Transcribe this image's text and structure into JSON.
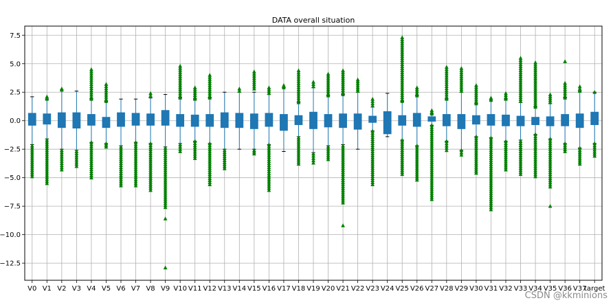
{
  "chart_data": {
    "type": "box",
    "title": "DATA overall situation",
    "xlabel": "",
    "ylabel": "",
    "ylim": [
      -14,
      8.3
    ],
    "yticks": [
      7.5,
      5.0,
      2.5,
      0.0,
      -2.5,
      -5.0,
      -7.5,
      -10.0,
      -12.5
    ],
    "ytick_labels": [
      "7.5",
      "5.0",
      "2.5",
      "0.0",
      "−2.5",
      "−5.0",
      "−7.5",
      "−10.0",
      "−12.5"
    ],
    "grid": true,
    "box_color": "#1f77b4",
    "whisker_color": "#1f77b4",
    "flier_color": "#008000",
    "flier_marker": "triangle",
    "categories": [
      "V0",
      "V1",
      "V2",
      "V3",
      "V4",
      "V5",
      "V6",
      "V7",
      "V8",
      "V9",
      "V10",
      "V11",
      "V12",
      "V13",
      "V14",
      "V15",
      "V16",
      "V17",
      "V18",
      "V19",
      "V20",
      "V21",
      "V22",
      "V23",
      "V24",
      "V25",
      "V26",
      "V27",
      "V28",
      "V29",
      "V30",
      "V31",
      "V32",
      "V33",
      "V34",
      "V35",
      "V36",
      "V37",
      "target"
    ],
    "boxes": [
      {
        "q1": -0.4,
        "q3": 0.65,
        "wlo": -2.1,
        "whi": 2.1,
        "outliers_high": [],
        "outliers_low": [
          -2.2,
          -4.9
        ]
      },
      {
        "q1": -0.3,
        "q3": 0.6,
        "wlo": -1.6,
        "whi": 1.9,
        "outliers_high": [
          1.9,
          2.1
        ],
        "outliers_low": [
          -1.7,
          -5.5
        ]
      },
      {
        "q1": -0.6,
        "q3": 0.7,
        "wlo": -2.5,
        "whi": 2.7,
        "outliers_high": [
          2.7,
          2.8
        ],
        "outliers_low": [
          -2.6,
          -4.3
        ]
      },
      {
        "q1": -0.65,
        "q3": 0.7,
        "wlo": -2.6,
        "whi": 2.6,
        "outliers_high": [],
        "outliers_low": [
          -2.7,
          -4.0
        ]
      },
      {
        "q1": -0.4,
        "q3": 0.55,
        "wlo": -1.9,
        "whi": 1.9,
        "outliers_high": [
          1.9,
          4.5
        ],
        "outliers_low": [
          -1.9,
          -5.0
        ]
      },
      {
        "q1": -0.6,
        "q3": 0.3,
        "wlo": -2.0,
        "whi": 1.7,
        "outliers_high": [
          1.7,
          3.2
        ],
        "outliers_low": [
          -2.0,
          -2.3
        ]
      },
      {
        "q1": -0.5,
        "q3": 0.7,
        "wlo": -2.2,
        "whi": 1.9,
        "outliers_high": [],
        "outliers_low": [
          -2.3,
          -5.7
        ]
      },
      {
        "q1": -0.4,
        "q3": 0.65,
        "wlo": -1.9,
        "whi": 1.9,
        "outliers_high": [],
        "outliers_low": [
          -1.9,
          -5.7
        ]
      },
      {
        "q1": -0.4,
        "q3": 0.6,
        "wlo": -2.0,
        "whi": 2.0,
        "outliers_high": [
          2.2,
          2.4
        ],
        "outliers_low": [
          -2.0,
          -6.1
        ]
      },
      {
        "q1": -0.4,
        "q3": 0.9,
        "wlo": -2.3,
        "whi": 2.3,
        "outliers_high": [],
        "outliers_low": [
          -2.4,
          -7.6,
          -8.6,
          -12.9
        ]
      },
      {
        "q1": -0.5,
        "q3": 0.55,
        "wlo": -2.0,
        "whi": 2.0,
        "outliers_high": [
          2.0,
          4.8
        ],
        "outliers_low": [
          -2.1,
          -2.7
        ]
      },
      {
        "q1": -0.5,
        "q3": 0.5,
        "wlo": -1.8,
        "whi": 1.9,
        "outliers_high": [
          1.9,
          2.9
        ],
        "outliers_low": [
          -1.8,
          -3.3
        ]
      },
      {
        "q1": -0.5,
        "q3": 0.55,
        "wlo": -2.0,
        "whi": 2.0,
        "outliers_high": [
          2.0,
          4.0
        ],
        "outliers_low": [
          -2.0,
          -5.6
        ]
      },
      {
        "q1": -0.6,
        "q3": 0.7,
        "wlo": -2.5,
        "whi": 2.5,
        "outliers_high": [],
        "outliers_low": [
          -2.6,
          -4.2
        ]
      },
      {
        "q1": -0.6,
        "q3": 0.65,
        "wlo": -2.5,
        "whi": 2.5,
        "outliers_high": [
          2.6,
          2.8
        ],
        "outliers_low": []
      },
      {
        "q1": -0.7,
        "q3": 0.6,
        "wlo": -2.5,
        "whi": 2.5,
        "outliers_high": [
          2.8,
          4.3
        ],
        "outliers_low": [
          -2.6,
          -2.9
        ]
      },
      {
        "q1": -0.5,
        "q3": 0.65,
        "wlo": -2.1,
        "whi": 2.3,
        "outliers_high": [
          2.4,
          2.9
        ],
        "outliers_low": [
          -2.1,
          -6.1
        ]
      },
      {
        "q1": -0.85,
        "q3": 0.55,
        "wlo": -2.7,
        "whi": 2.9,
        "outliers_high": [
          2.9,
          3.1
        ],
        "outliers_low": []
      },
      {
        "q1": -0.35,
        "q3": 0.45,
        "wlo": -1.4,
        "whi": 1.6,
        "outliers_high": [
          1.6,
          4.4
        ],
        "outliers_low": [
          -1.5,
          -3.8
        ]
      },
      {
        "q1": -0.7,
        "q3": 0.75,
        "wlo": -2.8,
        "whi": 2.9,
        "outliers_high": [
          3.0,
          3.4
        ],
        "outliers_low": [
          -2.9,
          -3.7
        ]
      },
      {
        "q1": -0.55,
        "q3": 0.55,
        "wlo": -2.2,
        "whi": 2.2,
        "outliers_high": [
          2.2,
          4.1
        ],
        "outliers_low": [
          -2.3,
          -3.4
        ]
      },
      {
        "q1": -0.6,
        "q3": 0.6,
        "wlo": -2.1,
        "whi": 2.3,
        "outliers_high": [
          2.3,
          4.4
        ],
        "outliers_low": [
          -2.2,
          -7.2,
          -9.2
        ]
      },
      {
        "q1": -0.75,
        "q3": 0.6,
        "wlo": -2.5,
        "whi": 2.5,
        "outliers_high": [
          2.6,
          3.6
        ],
        "outliers_low": []
      },
      {
        "q1": -0.15,
        "q3": 0.4,
        "wlo": -0.9,
        "whi": 1.2,
        "outliers_high": [
          1.3,
          1.9
        ],
        "outliers_low": [
          -0.9,
          -5.6
        ]
      },
      {
        "q1": -1.15,
        "q3": 0.8,
        "wlo": -1.4,
        "whi": 2.4,
        "outliers_high": [],
        "outliers_low": []
      },
      {
        "q1": -0.4,
        "q3": 0.45,
        "wlo": -1.7,
        "whi": 1.7,
        "outliers_high": [
          1.7,
          7.3
        ],
        "outliers_low": [
          -1.7,
          -4.7
        ]
      },
      {
        "q1": -0.5,
        "q3": 0.65,
        "wlo": -2.2,
        "whi": 2.2,
        "outliers_high": [
          2.2,
          2.9
        ],
        "outliers_low": [
          -2.2,
          -5.2
        ]
      },
      {
        "q1": -0.05,
        "q3": 0.35,
        "wlo": -0.4,
        "whi": 0.6,
        "outliers_high": [
          0.6,
          0.9
        ],
        "outliers_low": [
          -0.4,
          -6.9
        ]
      },
      {
        "q1": -0.45,
        "q3": 0.55,
        "wlo": -1.8,
        "whi": 1.9,
        "outliers_high": [
          1.9,
          4.7
        ],
        "outliers_low": [
          -1.8,
          -2.6
        ]
      },
      {
        "q1": -0.7,
        "q3": 0.55,
        "wlo": -2.6,
        "whi": 2.5,
        "outliers_high": [
          2.6,
          4.6
        ],
        "outliers_low": [
          -2.6,
          -3.0
        ]
      },
      {
        "q1": -0.3,
        "q3": 0.45,
        "wlo": -1.4,
        "whi": 1.5,
        "outliers_high": [
          1.5,
          3.1
        ],
        "outliers_low": [
          -1.4,
          -4.6
        ]
      },
      {
        "q1": -0.4,
        "q3": 0.55,
        "wlo": -1.5,
        "whi": 1.8,
        "outliers_high": [
          1.8,
          2.0
        ],
        "outliers_low": [
          -1.5,
          -7.8
        ]
      },
      {
        "q1": -0.45,
        "q3": 0.5,
        "wlo": -1.8,
        "whi": 1.9,
        "outliers_high": [
          1.9,
          2.4
        ],
        "outliers_low": [
          -1.8,
          -4.3
        ]
      },
      {
        "q1": -0.45,
        "q3": 0.4,
        "wlo": -1.7,
        "whi": 1.6,
        "outliers_high": [
          1.7,
          5.5
        ],
        "outliers_low": [
          -1.8,
          -4.7
        ]
      },
      {
        "q1": -0.35,
        "q3": 0.3,
        "wlo": -1.2,
        "whi": 1.2,
        "outliers_high": [
          1.2,
          5.1
        ],
        "outliers_low": [
          -1.2,
          -4.9
        ]
      },
      {
        "q1": -0.45,
        "q3": 0.35,
        "wlo": -1.6,
        "whi": 1.5,
        "outliers_high": [
          1.6,
          2.3
        ],
        "outliers_low": [
          -1.6,
          -5.8,
          -7.5
        ]
      },
      {
        "q1": -0.45,
        "q3": 0.55,
        "wlo": -2.0,
        "whi": 2.0,
        "outliers_high": [
          2.0,
          3.3,
          5.2
        ],
        "outliers_low": [
          -2.0,
          -2.7
        ]
      },
      {
        "q1": -0.6,
        "q3": 0.6,
        "wlo": -2.4,
        "whi": 2.6,
        "outliers_high": [
          2.6,
          3.0
        ],
        "outliers_low": [
          -2.4,
          -3.8
        ]
      },
      {
        "q1": -0.35,
        "q3": 0.75,
        "wlo": -2.0,
        "whi": 2.5,
        "outliers_high": [
          2.5
        ],
        "outliers_low": [
          -2.0,
          -3.1
        ]
      }
    ]
  },
  "watermark": "CSDN @kkminions"
}
